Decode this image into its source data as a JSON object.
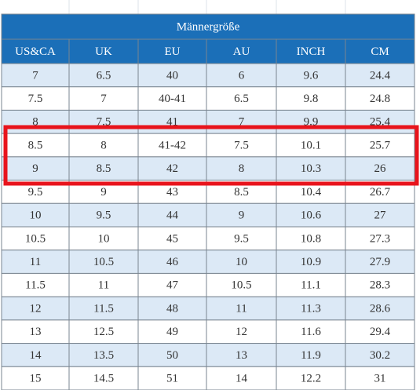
{
  "table": {
    "title": "Männergröße",
    "columns": [
      "US&CA",
      "UK",
      "EU",
      "AU",
      "INCH",
      "CM"
    ],
    "rows": [
      [
        "7",
        "6.5",
        "40",
        "6",
        "9.6",
        "24.4"
      ],
      [
        "7.5",
        "7",
        "40-41",
        "6.5",
        "9.8",
        "24.8"
      ],
      [
        "8",
        "7.5",
        "41",
        "7",
        "9.9",
        "25.4"
      ],
      [
        "8.5",
        "8",
        "41-42",
        "7.5",
        "10.1",
        "25.7"
      ],
      [
        "9",
        "8.5",
        "42",
        "8",
        "10.3",
        "26"
      ],
      [
        "9.5",
        "9",
        "43",
        "8.5",
        "10.4",
        "26.7"
      ],
      [
        "10",
        "9.5",
        "44",
        "9",
        "10.6",
        "27"
      ],
      [
        "10.5",
        "10",
        "45",
        "9.5",
        "10.8",
        "27.3"
      ],
      [
        "11",
        "10.5",
        "46",
        "10",
        "10.9",
        "27.9"
      ],
      [
        "11.5",
        "11",
        "47",
        "10.5",
        "11.1",
        "28.3"
      ],
      [
        "12",
        "11.5",
        "48",
        "11",
        "11.3",
        "28.6"
      ],
      [
        "13",
        "12.5",
        "49",
        "12",
        "11.6",
        "29.4"
      ],
      [
        "14",
        "13.5",
        "50",
        "13",
        "11.9",
        "30.2"
      ],
      [
        "15",
        "14.5",
        "51",
        "14",
        "12.2",
        "31"
      ]
    ]
  }
}
